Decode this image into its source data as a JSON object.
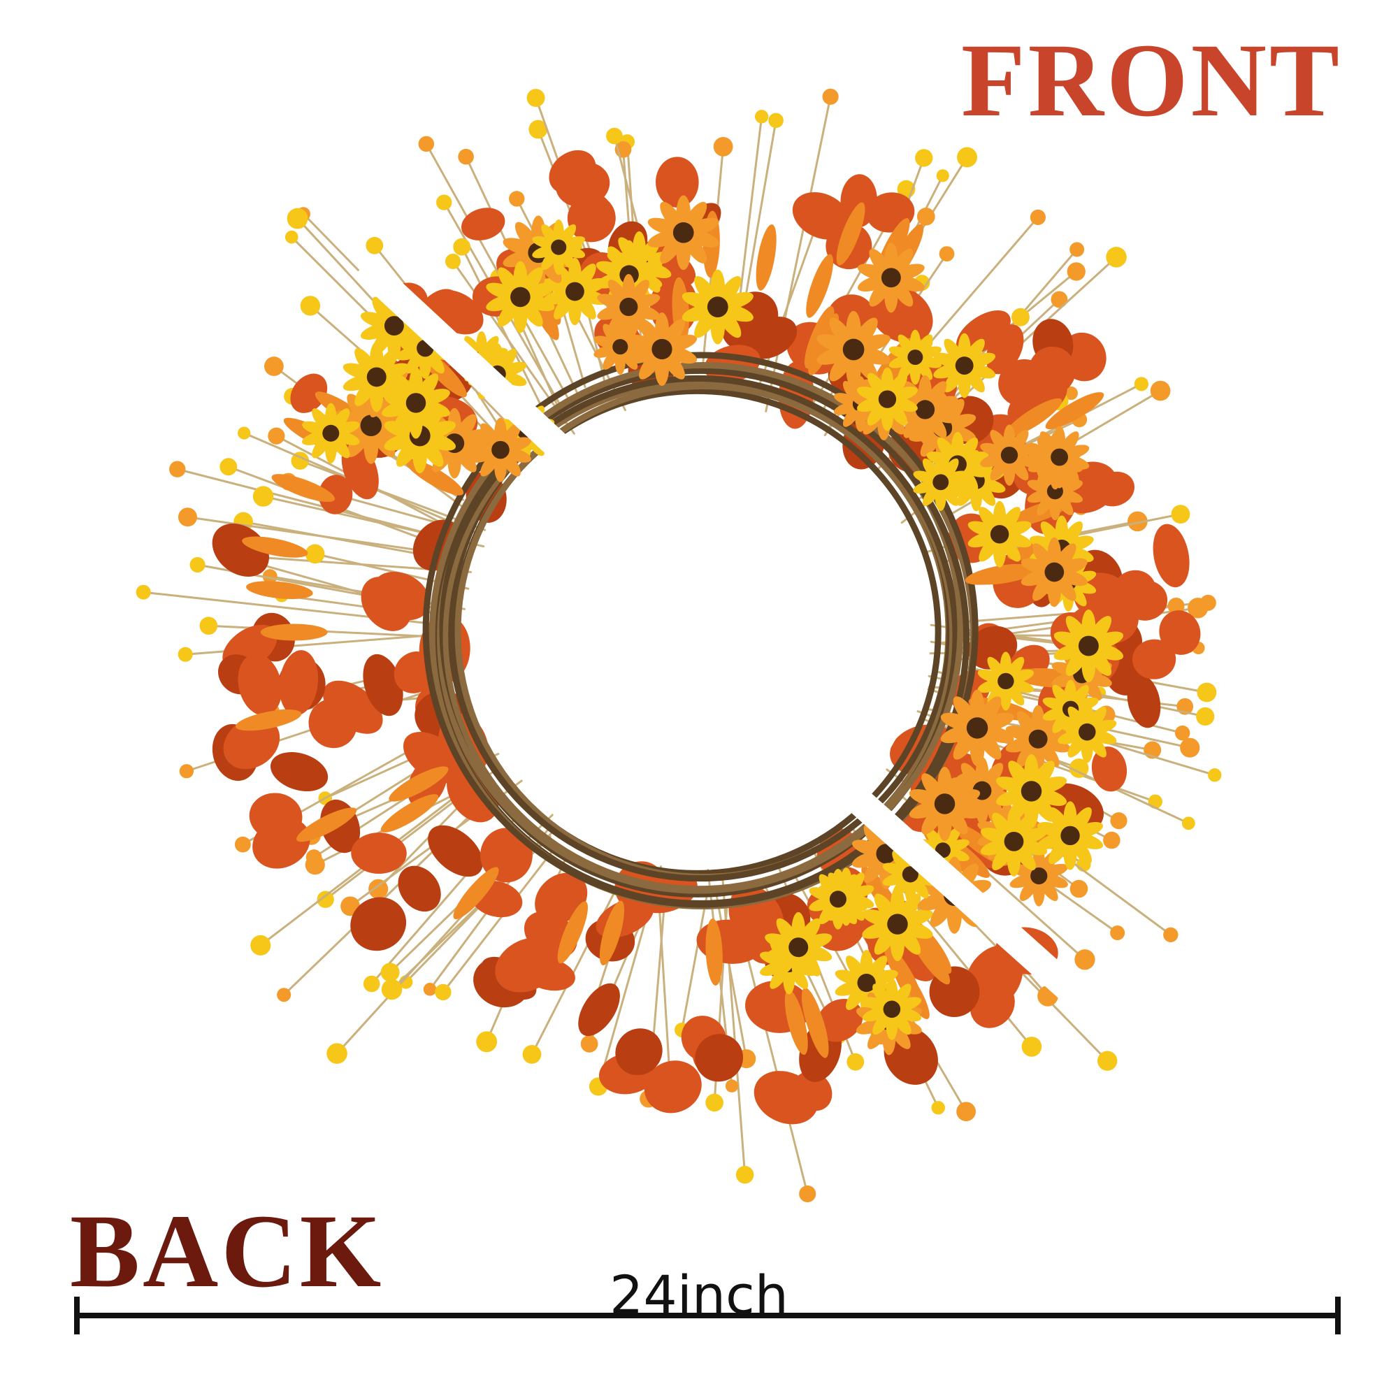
{
  "labels": {
    "front": "FRONT",
    "back": "BACK",
    "dimension": "24inch"
  },
  "colors": {
    "front_text": "#c8452c",
    "back_text": "#6b1a0d",
    "dimension": "#111111",
    "vine": "#8a6a3e",
    "vine_dark": "#5e4426",
    "leaf": "#d9541e",
    "leaf_dark": "#b93e12",
    "flower_yellow": "#f6c619",
    "flower_orange": "#f39a2a",
    "flower_center": "#4a2a10",
    "wheat": "#f08a24",
    "stem": "#c9b07c"
  },
  "icons": {
    "wreath": "wreath-photo"
  }
}
